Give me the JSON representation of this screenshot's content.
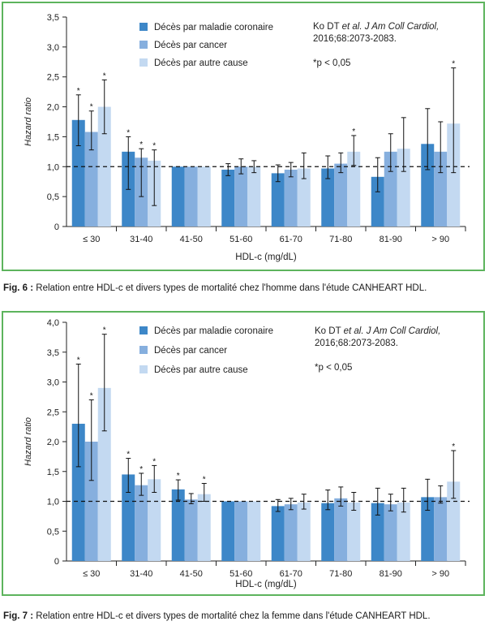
{
  "figures": [
    {
      "fig_label": "Fig. 6 :",
      "caption": "Relation entre HDL-c et divers types de mortalité chez l'homme dans l'étude CANHEART HDL."
    },
    {
      "fig_label": "Fig. 7 :",
      "caption": "Relation entre HDL-c et divers types de mortalité chez la femme dans l'étude CANHEART HDL."
    }
  ],
  "colors": {
    "coronary": "#3d87c8",
    "cancer": "#86afde",
    "other": "#c3d9f1",
    "frame": "#5db45d"
  },
  "chart_data": [
    {
      "type": "bar",
      "xlabel": "HDL-c (mg/dL)",
      "ylabel": "Hazard ratio",
      "ylim": [
        0,
        3.5
      ],
      "yticks": [
        "0",
        "0,5",
        "1,0",
        "1,5",
        "2,0",
        "2,5",
        "3,0",
        "3,5"
      ],
      "yticks_values": [
        0,
        0.5,
        1.0,
        1.5,
        2.0,
        2.5,
        3.0,
        3.5
      ],
      "reference_line": 1.0,
      "categories": [
        "≤ 30",
        "31-40",
        "41-50",
        "51-60",
        "61-70",
        "71-80",
        "81-90",
        "> 90"
      ],
      "series": [
        {
          "name": "Décès par maladie coronaire",
          "values": [
            1.78,
            1.25,
            1.0,
            0.95,
            0.89,
            0.97,
            0.83,
            1.38
          ],
          "err_low": [
            1.35,
            0.62,
            1.0,
            0.85,
            0.75,
            0.8,
            0.58,
            0.95
          ],
          "err_high": [
            2.2,
            1.5,
            1.0,
            1.05,
            1.03,
            1.18,
            1.15,
            1.97
          ],
          "significant": [
            true,
            true,
            false,
            false,
            false,
            false,
            false,
            false
          ]
        },
        {
          "name": "Décès par cancer",
          "values": [
            1.58,
            1.15,
            1.0,
            1.0,
            0.95,
            1.05,
            1.25,
            1.25
          ],
          "err_low": [
            1.28,
            0.5,
            1.0,
            0.88,
            0.83,
            0.9,
            0.92,
            0.9
          ],
          "err_high": [
            1.93,
            1.3,
            1.0,
            1.13,
            1.07,
            1.23,
            1.55,
            1.75
          ],
          "significant": [
            true,
            true,
            false,
            false,
            false,
            false,
            false,
            false
          ]
        },
        {
          "name": "Décès par autre cause",
          "values": [
            2.0,
            1.1,
            1.0,
            1.0,
            0.97,
            1.25,
            1.3,
            1.72
          ],
          "err_low": [
            1.55,
            0.35,
            1.0,
            0.9,
            0.8,
            1.02,
            0.92,
            0.9
          ],
          "err_high": [
            2.45,
            1.28,
            1.0,
            1.1,
            1.23,
            1.52,
            1.82,
            2.65
          ],
          "significant": [
            true,
            true,
            false,
            false,
            false,
            true,
            false,
            true
          ]
        }
      ],
      "legend": [
        "Décès par maladie coronaire",
        "Décès par cancer",
        "Décès par autre cause"
      ],
      "legend_position": "top-center",
      "reference": {
        "prefix": "Ko DT ",
        "italic": "et al. J Am Coll Cardiol,",
        "line2": "2016;68:2073-2083."
      },
      "significance_note": "*p < 0,05",
      "star": "*"
    },
    {
      "type": "bar",
      "xlabel": "HDL-c (mg/dL)",
      "ylabel": "Hazard ratio",
      "ylim": [
        0,
        4.0
      ],
      "yticks": [
        "0",
        "0,5",
        "1,0",
        "1,5",
        "2,0",
        "2,5",
        "3,0",
        "3,5",
        "4,0"
      ],
      "yticks_values": [
        0,
        0.5,
        1.0,
        1.5,
        2.0,
        2.5,
        3.0,
        3.5,
        4.0
      ],
      "reference_line": 1.0,
      "categories": [
        "≤ 30",
        "31-40",
        "41-50",
        "51-60",
        "61-70",
        "71-80",
        "81-90",
        "> 90"
      ],
      "series": [
        {
          "name": "Décès par maladie coronaire",
          "values": [
            2.3,
            1.45,
            1.2,
            1.0,
            0.92,
            0.97,
            0.97,
            1.07
          ],
          "err_low": [
            1.58,
            1.15,
            1.02,
            1.0,
            0.83,
            0.86,
            0.77,
            0.85
          ],
          "err_high": [
            3.3,
            1.72,
            1.36,
            1.0,
            1.03,
            1.19,
            1.22,
            1.37
          ],
          "significant": [
            true,
            true,
            true,
            false,
            false,
            false,
            false,
            false
          ]
        },
        {
          "name": "Décès par cancer",
          "values": [
            2.0,
            1.27,
            1.03,
            1.0,
            0.95,
            1.05,
            0.95,
            1.07
          ],
          "err_low": [
            1.35,
            1.1,
            0.96,
            1.0,
            0.86,
            0.92,
            0.84,
            0.97
          ],
          "err_high": [
            2.7,
            1.47,
            1.13,
            1.0,
            1.05,
            1.24,
            1.12,
            1.26
          ],
          "significant": [
            true,
            true,
            false,
            false,
            false,
            false,
            false,
            false
          ]
        },
        {
          "name": "Décès par autre cause",
          "values": [
            2.9,
            1.37,
            1.12,
            1.0,
            0.98,
            0.98,
            0.98,
            1.33
          ],
          "err_low": [
            2.18,
            1.15,
            1.0,
            1.0,
            0.87,
            0.85,
            0.82,
            1.05
          ],
          "err_high": [
            3.8,
            1.6,
            1.3,
            1.0,
            1.12,
            1.15,
            1.22,
            1.85
          ],
          "significant": [
            true,
            true,
            true,
            false,
            false,
            false,
            false,
            true
          ]
        }
      ],
      "legend": [
        "Décès par maladie coronaire",
        "Décès par cancer",
        "Décès par autre cause"
      ],
      "legend_position": "top-center",
      "reference": {
        "prefix": "Ko DT ",
        "italic": "et al. J Am Coll Cardiol,",
        "line2": "2016;68:2073-2083."
      },
      "significance_note": "*p < 0,05",
      "star": "*"
    }
  ]
}
